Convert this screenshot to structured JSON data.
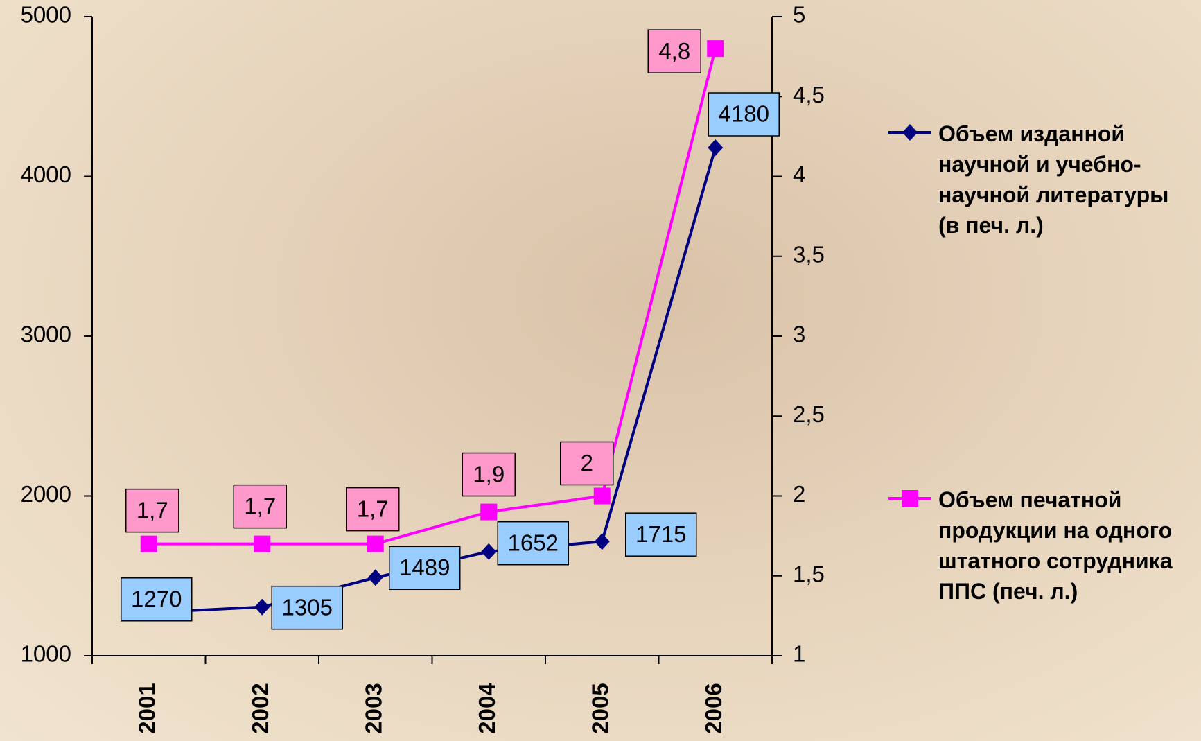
{
  "chart_data": {
    "type": "line",
    "categories": [
      "2001",
      "2002",
      "2003",
      "2004",
      "2005",
      "2006"
    ],
    "series": [
      {
        "name": "Объем изданной научной и учебно-научной литературы (в печ. л.)",
        "color": "#000080",
        "marker": "diamond",
        "values": [
          1270,
          1305,
          1489,
          1652,
          1715,
          4180
        ]
      },
      {
        "name": "Объем печатной продукции на одного штатного сотрудника ППС (печ. л.)",
        "color": "#ff00ff",
        "marker": "square",
        "axis": "y2",
        "values": [
          1.7,
          1.7,
          1.7,
          1.9,
          2,
          4.8
        ],
        "value_labels": [
          "1,7",
          "1,7",
          "1,7",
          "1,9",
          "2",
          "4,8"
        ]
      }
    ],
    "ylim": [
      1000,
      5000
    ],
    "yticks": [
      1000,
      2000,
      3000,
      4000,
      5000
    ],
    "y2lim": [
      1,
      5
    ],
    "y2ticks": [
      1,
      {
        "value": 1.5,
        "label": "1,5"
      },
      2,
      {
        "value": 2.5,
        "label": "2,5"
      },
      3,
      {
        "value": 3.5,
        "label": "3,5"
      },
      4,
      {
        "value": 4.5,
        "label": "4,5"
      },
      5
    ],
    "grid": false,
    "legend": "right"
  }
}
